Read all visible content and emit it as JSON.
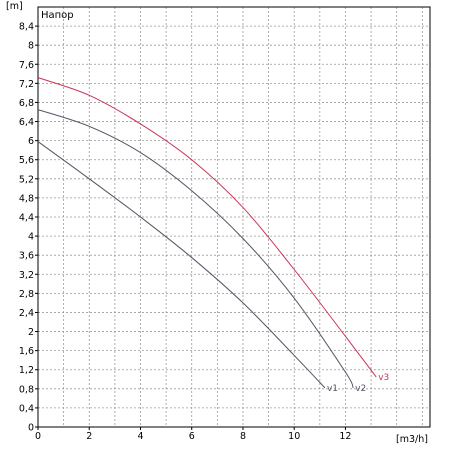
{
  "chart_data": {
    "type": "line",
    "title": "Напор",
    "ylabel": "[m]",
    "xlabel": "[m3/h]",
    "xlim": [
      0,
      15.3
    ],
    "ylim": [
      0,
      8.8
    ],
    "x_ticks": [
      "0",
      "2",
      "4",
      "6",
      "8",
      "10",
      "12"
    ],
    "x_tick_values": [
      0,
      2,
      4,
      6,
      8,
      10,
      12
    ],
    "y_ticks": [
      "0",
      "0,4",
      "0,8",
      "1,2",
      "1,6",
      "2",
      "2,4",
      "2,8",
      "3,2",
      "3,6",
      "4",
      "4,4",
      "4,8",
      "5,2",
      "5,6",
      "6",
      "6,4",
      "6,8",
      "7,2",
      "7,6",
      "8",
      "8,4"
    ],
    "y_tick_values": [
      0,
      0.4,
      0.8,
      1.2,
      1.6,
      2,
      2.4,
      2.8,
      3.2,
      3.6,
      4,
      4.4,
      4.8,
      5.2,
      5.6,
      6,
      6.4,
      6.8,
      7.2,
      7.6,
      8,
      8.4
    ],
    "grid": true,
    "series": [
      {
        "name": "v1",
        "color": "#555566",
        "x": [
          0,
          2,
          4,
          6,
          8,
          10,
          11.2
        ],
        "y": [
          5.98,
          5.2,
          4.4,
          3.55,
          2.6,
          1.5,
          0.82
        ]
      },
      {
        "name": "v2",
        "color": "#555566",
        "x": [
          0,
          2,
          4,
          6,
          8,
          10,
          12,
          12.3
        ],
        "y": [
          6.65,
          6.3,
          5.75,
          4.95,
          3.95,
          2.7,
          1.15,
          0.82
        ]
      },
      {
        "name": "v3",
        "color": "#cc3355",
        "x": [
          0,
          2,
          4,
          6,
          8,
          10,
          12,
          13.2
        ],
        "y": [
          7.32,
          6.95,
          6.35,
          5.6,
          4.6,
          3.3,
          1.9,
          1.05
        ]
      }
    ]
  }
}
